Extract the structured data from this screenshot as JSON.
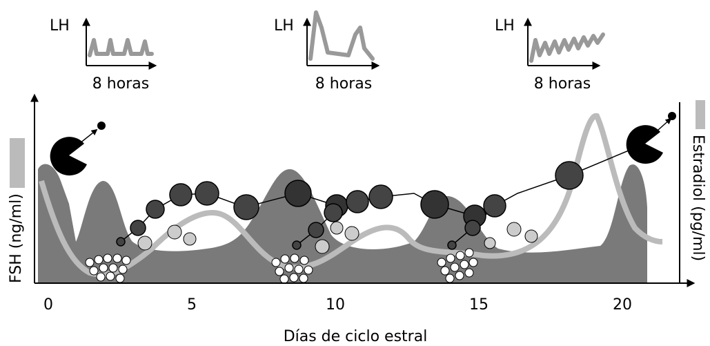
{
  "insets": [
    {
      "y_label": "LH",
      "x_label": "8 horas"
    },
    {
      "y_label": "LH",
      "x_label": "8 horas"
    },
    {
      "y_label": "LH",
      "x_label": "8 horas"
    }
  ],
  "main": {
    "y_label_left": "FSH (ng/ml)",
    "y_label_right": "Estradiol (pg/ml)",
    "x_label": "Días de ciclo estral",
    "x_ticks": [
      0,
      5,
      10,
      15,
      20
    ]
  }
}
